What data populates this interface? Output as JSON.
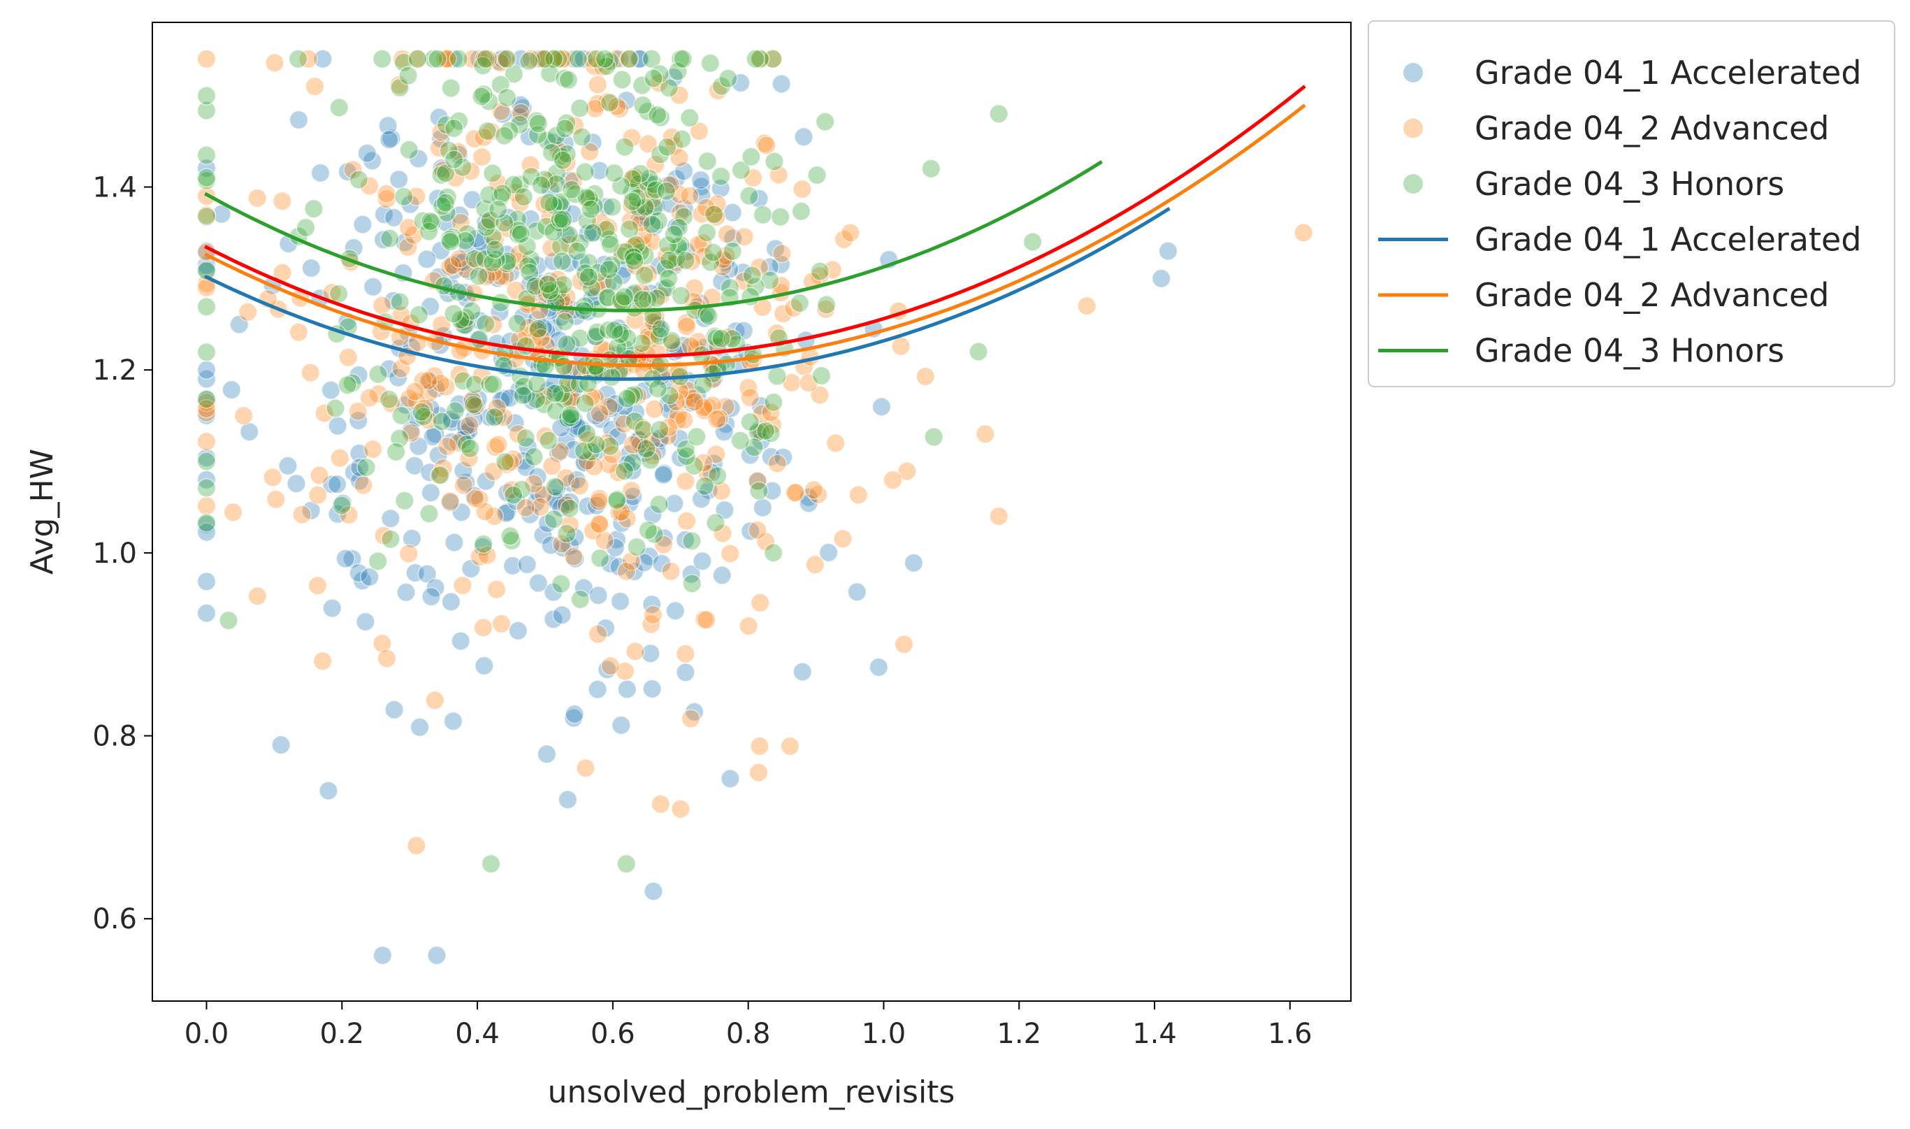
{
  "chart_data": {
    "type": "scatter",
    "title": "",
    "xlabel": "unsolved_problem_revisits",
    "ylabel": "Avg_HW",
    "xlim": [
      -0.08,
      1.69
    ],
    "ylim": [
      0.51,
      1.58
    ],
    "xticks": [
      0.0,
      0.2,
      0.4,
      0.6,
      0.8,
      1.0,
      1.2,
      1.4,
      1.6
    ],
    "xtick_labels": [
      "0.0",
      "0.2",
      "0.4",
      "0.6",
      "0.8",
      "1.0",
      "1.2",
      "1.4",
      "1.6"
    ],
    "yticks": [
      0.6,
      0.8,
      1.0,
      1.2,
      1.4
    ],
    "ytick_labels": [
      "0.6",
      "0.8",
      "1.0",
      "1.2",
      "1.4"
    ],
    "grid": false,
    "legend_position": "outside-upper-right",
    "point_count_per_group": 450,
    "scatter_series": [
      {
        "name": "Grade 04_1 Accelerated",
        "color": "#1f77b4",
        "opacity": 0.33,
        "center_x": 0.53,
        "spread_x": 0.2,
        "x_max": 1.42,
        "center_y": 1.2,
        "spread_y": 0.17,
        "seed": 11,
        "extra_points": [
          [
            0.0,
            1.08
          ],
          [
            0.0,
            1.2
          ],
          [
            0.0,
            1.31
          ],
          [
            0.0,
            1.33
          ],
          [
            0.26,
            0.56
          ],
          [
            0.34,
            0.56
          ],
          [
            0.11,
            0.79
          ],
          [
            0.18,
            0.74
          ],
          [
            1.42,
            1.33
          ],
          [
            1.41,
            1.3
          ],
          [
            0.69,
            1.52
          ],
          [
            0.88,
            0.87
          ],
          [
            0.66,
            0.63
          ]
        ]
      },
      {
        "name": "Grade 04_2 Advanced",
        "color": "#ff7f0e",
        "opacity": 0.33,
        "center_x": 0.55,
        "spread_x": 0.2,
        "x_max": 1.62,
        "center_y": 1.22,
        "spread_y": 0.17,
        "seed": 23,
        "extra_points": [
          [
            1.62,
            1.35
          ],
          [
            0.0,
            1.29
          ],
          [
            0.0,
            1.39
          ],
          [
            1.3,
            1.27
          ],
          [
            1.17,
            1.04
          ],
          [
            1.03,
            0.9
          ],
          [
            0.57,
            1.54
          ],
          [
            0.16,
            1.51
          ],
          [
            0.7,
            0.72
          ],
          [
            0.31,
            0.68
          ],
          [
            1.15,
            1.13
          ]
        ]
      },
      {
        "name": "Grade 04_3 Honors",
        "color": "#2ca02c",
        "opacity": 0.33,
        "center_x": 0.56,
        "spread_x": 0.17,
        "x_max": 1.32,
        "center_y": 1.3,
        "spread_y": 0.14,
        "seed": 37,
        "extra_points": [
          [
            0.0,
            1.41
          ],
          [
            1.17,
            1.48
          ],
          [
            1.22,
            1.34
          ],
          [
            1.07,
            1.42
          ],
          [
            0.62,
            0.66
          ],
          [
            0.42,
            0.66
          ],
          [
            1.14,
            1.22
          ]
        ]
      }
    ],
    "fit_lines": [
      {
        "name": "Grade 04_1 Accelerated",
        "color": "#1f77b4",
        "x_range": [
          0.0,
          1.42
        ],
        "a": 0.29,
        "vertex_x": 0.62,
        "vertex_y": 1.19,
        "in_legend": true
      },
      {
        "name": "Grade 04_2 Advanced",
        "color": "#ff7f0e",
        "x_range": [
          0.0,
          1.62
        ],
        "a": 0.295,
        "vertex_x": 0.64,
        "vertex_y": 1.205,
        "in_legend": true
      },
      {
        "name": "Grade 04_3 Honors",
        "color": "#2ca02c",
        "x_range": [
          0.0,
          1.32
        ],
        "a": 0.33,
        "vertex_x": 0.62,
        "vertex_y": 1.265,
        "in_legend": true
      },
      {
        "name": "",
        "color": "#ff0000",
        "x_range": [
          0.0,
          1.62
        ],
        "a": 0.3,
        "vertex_x": 0.63,
        "vertex_y": 1.215,
        "in_legend": false
      }
    ],
    "legend": [
      {
        "label": "Grade 04_1 Accelerated",
        "kind": "marker",
        "color": "#1f77b4",
        "opacity": 0.33
      },
      {
        "label": "Grade 04_2 Advanced",
        "kind": "marker",
        "color": "#ff7f0e",
        "opacity": 0.33
      },
      {
        "label": "Grade 04_3 Honors",
        "kind": "marker",
        "color": "#2ca02c",
        "opacity": 0.33
      },
      {
        "label": "Grade 04_1 Accelerated",
        "kind": "line",
        "color": "#1f77b4"
      },
      {
        "label": "Grade 04_2 Advanced",
        "kind": "line",
        "color": "#ff7f0e"
      },
      {
        "label": "Grade 04_3 Honors",
        "kind": "line",
        "color": "#2ca02c"
      }
    ]
  }
}
